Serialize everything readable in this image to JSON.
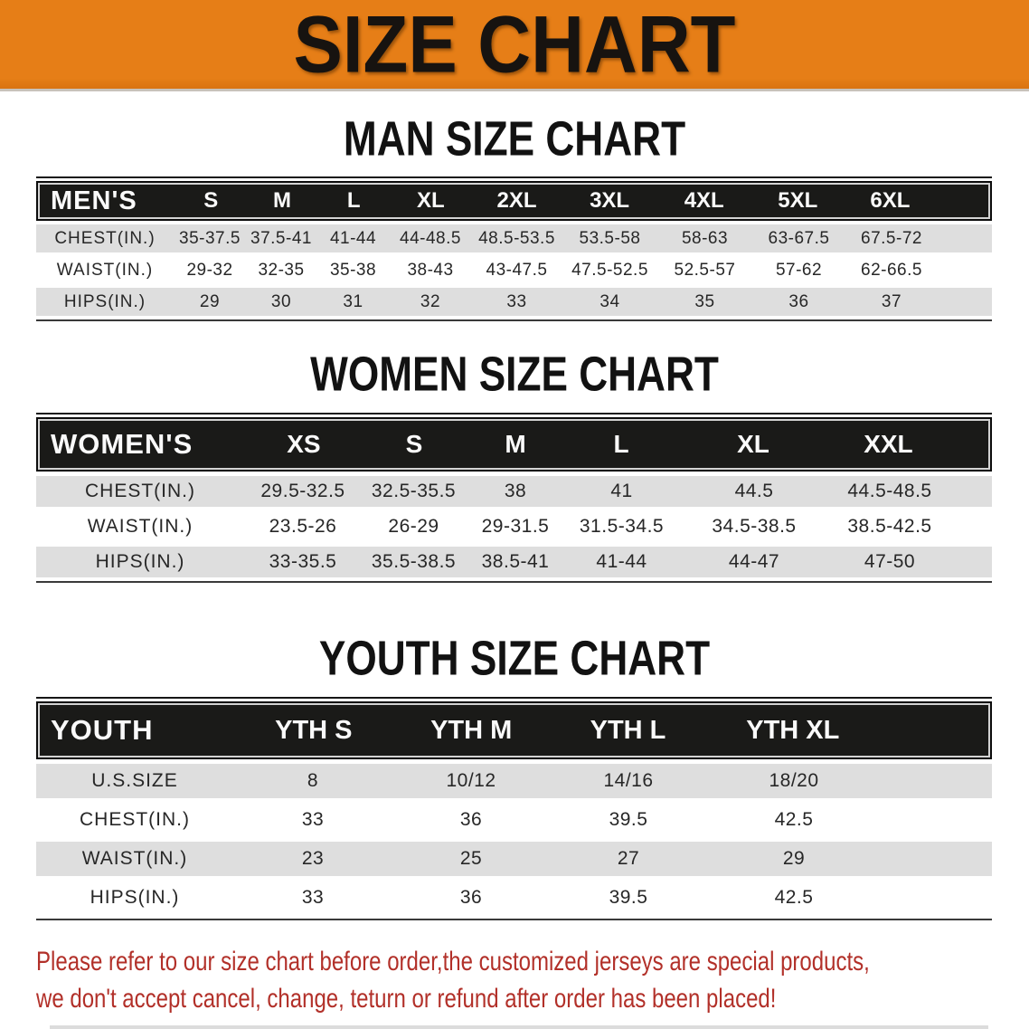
{
  "banner": {
    "title": "SIZE CHART"
  },
  "sections": [
    {
      "heading": "MAN SIZE CHART",
      "group_label": "MEN'S",
      "columns": [
        "S",
        "M",
        "L",
        "XL",
        "2XL",
        "3XL",
        "4XL",
        "5XL",
        "6XL"
      ],
      "rows": [
        {
          "label": "CHEST(IN.)",
          "values": [
            "35-37.5",
            "37.5-41",
            "41-44",
            "44-48.5",
            "48.5-53.5",
            "53.5-58",
            "58-63",
            "63-67.5",
            "67.5-72"
          ]
        },
        {
          "label": "WAIST(IN.)",
          "values": [
            "29-32",
            "32-35",
            "35-38",
            "38-43",
            "43-47.5",
            "47.5-52.5",
            "52.5-57",
            "57-62",
            "62-66.5"
          ]
        },
        {
          "label": "HIPS(IN.)",
          "values": [
            "29",
            "30",
            "31",
            "32",
            "33",
            "34",
            "35",
            "36",
            "37"
          ]
        }
      ]
    },
    {
      "heading": "WOMEN SIZE CHART",
      "group_label": "WOMEN'S",
      "columns": [
        "XS",
        "S",
        "M",
        "L",
        "XL",
        "XXL"
      ],
      "rows": [
        {
          "label": "CHEST(IN.)",
          "values": [
            "29.5-32.5",
            "32.5-35.5",
            "38",
            "41",
            "44.5",
            "44.5-48.5"
          ]
        },
        {
          "label": "WAIST(IN.)",
          "values": [
            "23.5-26",
            "26-29",
            "29-31.5",
            "31.5-34.5",
            "34.5-38.5",
            "38.5-42.5"
          ]
        },
        {
          "label": "HIPS(IN.)",
          "values": [
            "33-35.5",
            "35.5-38.5",
            "38.5-41",
            "41-44",
            "44-47",
            "47-50"
          ]
        }
      ]
    },
    {
      "heading": "YOUTH SIZE CHART",
      "group_label": "YOUTH",
      "columns": [
        "YTH S",
        "YTH M",
        "YTH L",
        "YTH XL"
      ],
      "rows": [
        {
          "label": "U.S.SIZE",
          "values": [
            "8",
            "10/12",
            "14/16",
            "18/20"
          ]
        },
        {
          "label": "CHEST(IN.)",
          "values": [
            "33",
            "36",
            "39.5",
            "42.5"
          ]
        },
        {
          "label": "WAIST(IN.)",
          "values": [
            "23",
            "25",
            "27",
            "29"
          ]
        },
        {
          "label": "HIPS(IN.)",
          "values": [
            "33",
            "36",
            "39.5",
            "42.5"
          ]
        }
      ]
    }
  ],
  "disclaimer": {
    "lines": [
      "Please refer to our size chart before order,the customized jerseys are special products,",
      "we don't accept cancel, change, teturn or refund after order has been placed!"
    ]
  },
  "colors": {
    "banner_bg": "#e67e17",
    "bar_bg": "#1a1a18",
    "row_alt_bg": "#dedede",
    "disclaimer_text": "#b23029"
  }
}
